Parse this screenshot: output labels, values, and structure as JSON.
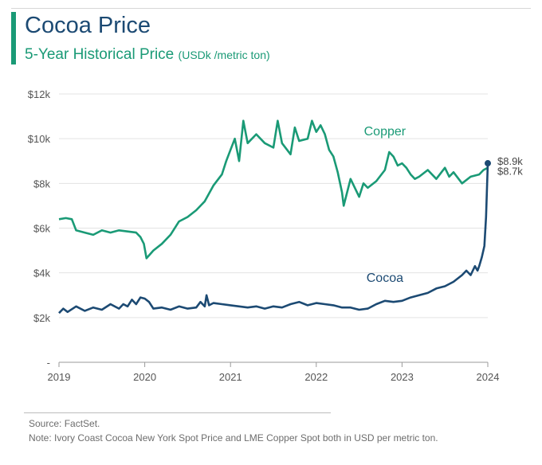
{
  "header": {
    "title": "Cocoa Price",
    "subtitle": "5-Year Historical Price",
    "subtitle_unit": "(USDk /metric ton)"
  },
  "footer": {
    "source": "Source: FactSet.",
    "note": "Note: Ivory Coast Cocoa New York Spot Price and LME Copper Spot both in USD per metric ton."
  },
  "colors": {
    "cocoa": "#1c4a73",
    "copper": "#1a9a76",
    "grid": "#e3e3e3",
    "axis_text": "#555555"
  },
  "chart_data": {
    "type": "line",
    "x_unit": "year",
    "xlim": [
      2019,
      2024
    ],
    "x_ticks": [
      2019,
      2020,
      2021,
      2022,
      2023,
      2024
    ],
    "x_tick_labels": [
      "2019",
      "2020",
      "2021",
      "2022",
      "2023",
      "2024"
    ],
    "ylim": [
      0,
      12000
    ],
    "y_ticks": [
      0,
      2000,
      4000,
      6000,
      8000,
      10000,
      12000
    ],
    "y_tick_labels": [
      "-",
      "$2k",
      "$4k",
      "$6k",
      "$8k",
      "$10k",
      "$12k"
    ],
    "grid": "horizontal",
    "legend": "inline labels",
    "series": [
      {
        "name": "Copper",
        "color": "#1a9a76",
        "end_label": "$8.7k",
        "points": [
          [
            2019.0,
            6400
          ],
          [
            2019.08,
            6450
          ],
          [
            2019.15,
            6400
          ],
          [
            2019.2,
            5900
          ],
          [
            2019.3,
            5800
          ],
          [
            2019.4,
            5700
          ],
          [
            2019.5,
            5900
          ],
          [
            2019.6,
            5800
          ],
          [
            2019.7,
            5900
          ],
          [
            2019.8,
            5850
          ],
          [
            2019.9,
            5800
          ],
          [
            2019.95,
            5600
          ],
          [
            2019.99,
            5300
          ],
          [
            2020.02,
            4650
          ],
          [
            2020.1,
            5000
          ],
          [
            2020.2,
            5300
          ],
          [
            2020.3,
            5700
          ],
          [
            2020.4,
            6300
          ],
          [
            2020.5,
            6500
          ],
          [
            2020.6,
            6800
          ],
          [
            2020.7,
            7200
          ],
          [
            2020.8,
            7900
          ],
          [
            2020.9,
            8400
          ],
          [
            2020.95,
            9000
          ],
          [
            2021.0,
            9500
          ],
          [
            2021.05,
            10000
          ],
          [
            2021.1,
            9000
          ],
          [
            2021.15,
            10800
          ],
          [
            2021.2,
            9800
          ],
          [
            2021.3,
            10200
          ],
          [
            2021.4,
            9800
          ],
          [
            2021.5,
            9600
          ],
          [
            2021.55,
            10800
          ],
          [
            2021.6,
            9800
          ],
          [
            2021.7,
            9300
          ],
          [
            2021.75,
            10500
          ],
          [
            2021.8,
            9900
          ],
          [
            2021.9,
            10000
          ],
          [
            2021.95,
            10800
          ],
          [
            2022.0,
            10300
          ],
          [
            2022.05,
            10600
          ],
          [
            2022.1,
            10200
          ],
          [
            2022.15,
            9500
          ],
          [
            2022.2,
            9200
          ],
          [
            2022.25,
            8500
          ],
          [
            2022.3,
            7600
          ],
          [
            2022.32,
            7000
          ],
          [
            2022.4,
            8200
          ],
          [
            2022.45,
            7800
          ],
          [
            2022.5,
            7400
          ],
          [
            2022.55,
            8000
          ],
          [
            2022.6,
            7800
          ],
          [
            2022.7,
            8100
          ],
          [
            2022.8,
            8600
          ],
          [
            2022.85,
            9400
          ],
          [
            2022.9,
            9200
          ],
          [
            2022.95,
            8800
          ],
          [
            2023.0,
            8900
          ],
          [
            2023.05,
            8700
          ],
          [
            2023.1,
            8400
          ],
          [
            2023.15,
            8200
          ],
          [
            2023.2,
            8300
          ],
          [
            2023.3,
            8600
          ],
          [
            2023.4,
            8200
          ],
          [
            2023.5,
            8700
          ],
          [
            2023.55,
            8300
          ],
          [
            2023.6,
            8500
          ],
          [
            2023.7,
            8000
          ],
          [
            2023.8,
            8300
          ],
          [
            2023.9,
            8400
          ],
          [
            2023.95,
            8600
          ],
          [
            2024.0,
            8700
          ]
        ]
      },
      {
        "name": "Cocoa",
        "color": "#1c4a73",
        "end_label": "$8.9k",
        "points": [
          [
            2019.0,
            2200
          ],
          [
            2019.05,
            2400
          ],
          [
            2019.1,
            2250
          ],
          [
            2019.2,
            2500
          ],
          [
            2019.3,
            2300
          ],
          [
            2019.4,
            2450
          ],
          [
            2019.5,
            2350
          ],
          [
            2019.6,
            2600
          ],
          [
            2019.7,
            2400
          ],
          [
            2019.75,
            2600
          ],
          [
            2019.8,
            2500
          ],
          [
            2019.85,
            2800
          ],
          [
            2019.9,
            2600
          ],
          [
            2019.95,
            2900
          ],
          [
            2020.0,
            2850
          ],
          [
            2020.05,
            2700
          ],
          [
            2020.1,
            2400
          ],
          [
            2020.2,
            2450
          ],
          [
            2020.3,
            2350
          ],
          [
            2020.4,
            2500
          ],
          [
            2020.5,
            2400
          ],
          [
            2020.6,
            2450
          ],
          [
            2020.65,
            2700
          ],
          [
            2020.7,
            2500
          ],
          [
            2020.72,
            3000
          ],
          [
            2020.75,
            2550
          ],
          [
            2020.8,
            2650
          ],
          [
            2020.9,
            2600
          ],
          [
            2021.0,
            2550
          ],
          [
            2021.1,
            2500
          ],
          [
            2021.2,
            2450
          ],
          [
            2021.3,
            2500
          ],
          [
            2021.4,
            2400
          ],
          [
            2021.5,
            2500
          ],
          [
            2021.6,
            2450
          ],
          [
            2021.7,
            2600
          ],
          [
            2021.8,
            2700
          ],
          [
            2021.9,
            2550
          ],
          [
            2022.0,
            2650
          ],
          [
            2022.1,
            2600
          ],
          [
            2022.2,
            2550
          ],
          [
            2022.3,
            2450
          ],
          [
            2022.4,
            2450
          ],
          [
            2022.5,
            2350
          ],
          [
            2022.6,
            2400
          ],
          [
            2022.7,
            2600
          ],
          [
            2022.8,
            2750
          ],
          [
            2022.9,
            2700
          ],
          [
            2023.0,
            2750
          ],
          [
            2023.1,
            2900
          ],
          [
            2023.2,
            3000
          ],
          [
            2023.3,
            3100
          ],
          [
            2023.4,
            3300
          ],
          [
            2023.5,
            3400
          ],
          [
            2023.6,
            3600
          ],
          [
            2023.7,
            3900
          ],
          [
            2023.75,
            4100
          ],
          [
            2023.8,
            3900
          ],
          [
            2023.85,
            4300
          ],
          [
            2023.88,
            4100
          ],
          [
            2023.9,
            4300
          ],
          [
            2023.93,
            4700
          ],
          [
            2023.96,
            5200
          ],
          [
            2023.98,
            6500
          ],
          [
            2024.0,
            8900
          ]
        ]
      }
    ],
    "inline_labels": [
      {
        "text": "Copper",
        "x": 2022.8,
        "y": 10150,
        "series": "Copper"
      },
      {
        "text": "Cocoa",
        "x": 2022.8,
        "y": 3600,
        "series": "Cocoa"
      }
    ]
  }
}
